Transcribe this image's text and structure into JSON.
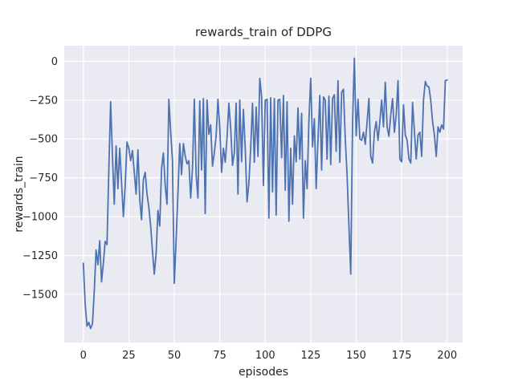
{
  "figure": {
    "title": "rewards_train of DDPG",
    "xlabel": "episodes",
    "ylabel": "rewards_train"
  },
  "chart_data": {
    "type": "line",
    "title": "rewards_train of DDPG",
    "xlabel": "episodes",
    "ylabel": "rewards_train",
    "grid": true,
    "legend": null,
    "xlim": [
      -10.5,
      208.5
    ],
    "ylim": [
      -1810,
      100
    ],
    "x_ticks": [
      0,
      25,
      50,
      75,
      100,
      125,
      150,
      175,
      200
    ],
    "x_tick_labels": [
      "0",
      "25",
      "50",
      "75",
      "100",
      "125",
      "150",
      "175",
      "200"
    ],
    "y_ticks": [
      0,
      -250,
      -500,
      -750,
      -1000,
      -1250,
      -1500
    ],
    "y_tick_labels": [
      "0",
      "−250",
      "−500",
      "−750",
      "−1000",
      "−1250",
      "−1500"
    ],
    "style": {
      "fig_bg": "#ffffff",
      "plot_bg": "#eaeaf2",
      "grid_color": "#ffffff",
      "text_color": "#262626",
      "line_color": "#4c72b0"
    },
    "series": [
      {
        "name": "rewards_train",
        "color": "#4c72b0",
        "x_start": 0,
        "x_step": 1,
        "values": [
          -1300,
          -1560,
          -1705,
          -1680,
          -1720,
          -1690,
          -1480,
          -1215,
          -1310,
          -1155,
          -1420,
          -1300,
          -1160,
          -1180,
          -700,
          -260,
          -612,
          -920,
          -545,
          -820,
          -560,
          -780,
          -1000,
          -800,
          -520,
          -560,
          -640,
          -575,
          -715,
          -855,
          -570,
          -890,
          -1020,
          -760,
          -715,
          -855,
          -940,
          -1060,
          -1220,
          -1370,
          -1240,
          -960,
          -1060,
          -690,
          -590,
          -800,
          -920,
          -245,
          -450,
          -640,
          -1430,
          -1150,
          -850,
          -530,
          -730,
          -530,
          -610,
          -660,
          -640,
          -880,
          -690,
          -245,
          -730,
          -880,
          -255,
          -700,
          -240,
          -980,
          -250,
          -470,
          -410,
          -675,
          -590,
          -480,
          -245,
          -430,
          -715,
          -560,
          -650,
          -490,
          -270,
          -430,
          -670,
          -590,
          -270,
          -855,
          -250,
          -647,
          -310,
          -560,
          -905,
          -784,
          -560,
          -270,
          -650,
          -295,
          -612,
          -110,
          -230,
          -800,
          -250,
          -245,
          -1010,
          -235,
          -840,
          -240,
          -990,
          -250,
          -245,
          -620,
          -220,
          -830,
          -260,
          -1030,
          -560,
          -920,
          -480,
          -647,
          -300,
          -630,
          -335,
          -1010,
          -640,
          -820,
          -380,
          -110,
          -550,
          -370,
          -820,
          -500,
          -220,
          -700,
          -230,
          -250,
          -630,
          -225,
          -664,
          -240,
          -215,
          -580,
          -125,
          -650,
          -200,
          -180,
          -500,
          -733,
          -1060,
          -1370,
          -400,
          20,
          -480,
          -245,
          -500,
          -509,
          -457,
          -534,
          -388,
          -240,
          -612,
          -655,
          -457,
          -388,
          -509,
          -388,
          -250,
          -422,
          -135,
          -422,
          -483,
          -345,
          -240,
          -457,
          -345,
          -125,
          -629,
          -647,
          -280,
          -474,
          -509,
          -629,
          -655,
          -265,
          -450,
          -629,
          -474,
          -457,
          -612,
          -250,
          -130,
          -160,
          -165,
          -255,
          -388,
          -474,
          -612,
          -422,
          -457,
          -410,
          -436,
          -125,
          -120
        ]
      }
    ]
  }
}
